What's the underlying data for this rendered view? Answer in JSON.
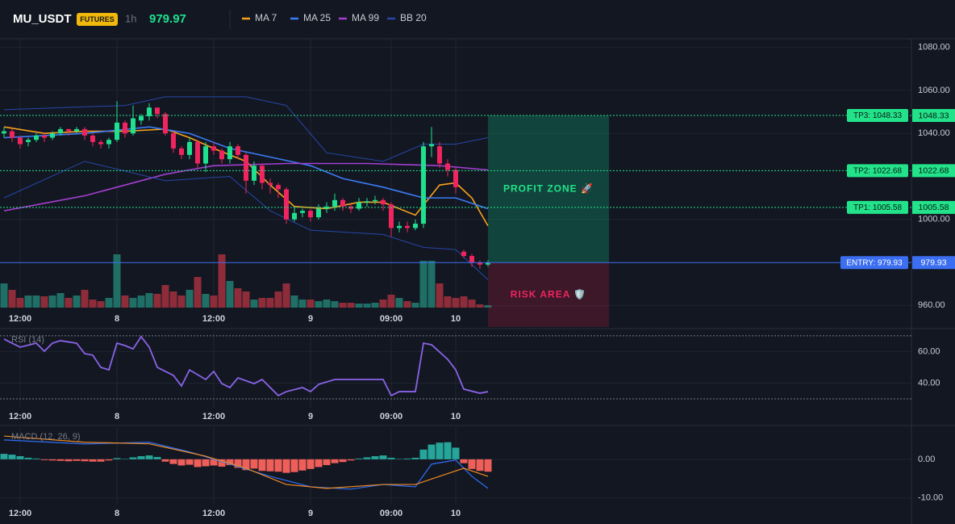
{
  "chart_data": [
    {
      "type": "candlestick",
      "title": "MU_USDT",
      "badge": "FUTURES",
      "interval": "1h",
      "last_price": 979.97,
      "ylim": [
        959,
        1084
      ],
      "yticks": [
        {
          "value": 1080,
          "label": "1080.00"
        },
        {
          "value": 1060,
          "label": "1060.00"
        },
        {
          "value": 1040,
          "label": "1040.00"
        },
        {
          "value": 1000,
          "label": "1000.00"
        },
        {
          "value": 960,
          "label": "960.00"
        }
      ],
      "xticks": [
        {
          "value": 2,
          "label": "12:00"
        },
        {
          "value": 14,
          "label": "8"
        },
        {
          "value": 26,
          "label": "12:00"
        },
        {
          "value": 38,
          "label": "9"
        },
        {
          "value": 48,
          "label": "09:00"
        },
        {
          "value": 56,
          "label": "10"
        }
      ],
      "grid": true,
      "up_color": "#1fe08f",
      "down_color": "#f0245e",
      "open": [
        1040,
        1041,
        1038,
        1036,
        1037,
        1039,
        1038,
        1040,
        1042,
        1041,
        1042,
        1039,
        1036,
        1035,
        1037,
        1045,
        1040,
        1046,
        1048,
        1052,
        1049,
        1040,
        1033,
        1030,
        1036,
        1026,
        1034,
        1032,
        1028,
        1034,
        1030,
        1018,
        1025,
        1017,
        1016,
        1014,
        1000,
        1003,
        1004,
        1001,
        1005,
        1006,
        1009,
        1006,
        1005,
        1008,
        1008.5,
        1009,
        1007,
        996,
        997,
        996,
        998,
        1034,
        1034,
        1026,
        1023,
        985,
        983,
        980,
        979
      ],
      "close": [
        1041,
        1038,
        1035,
        1037,
        1039,
        1038,
        1040,
        1042,
        1041,
        1042,
        1039,
        1036,
        1035,
        1037,
        1045,
        1040,
        1047,
        1048,
        1052,
        1049,
        1040,
        1033,
        1030,
        1036,
        1026,
        1034,
        1032,
        1028,
        1034,
        1030,
        1018,
        1025,
        1017,
        1016,
        1014,
        1000,
        1003,
        1004,
        1001,
        1005,
        1006,
        1009,
        1006,
        1005,
        1008,
        1008.5,
        1009,
        1007,
        996,
        997,
        996,
        998,
        1034,
        1035,
        1026,
        1023,
        1015,
        983,
        980,
        979,
        979.97
      ],
      "high": [
        1043,
        1042,
        1039,
        1038,
        1040,
        1040,
        1041,
        1043,
        1042,
        1043,
        1043,
        1040,
        1037,
        1038,
        1055,
        1046,
        1053,
        1049,
        1054,
        1052,
        1050,
        1041,
        1034,
        1038,
        1037,
        1036,
        1036,
        1033,
        1036,
        1035,
        1031,
        1027,
        1026,
        1019,
        1017,
        1015,
        1006,
        1005,
        1005,
        1007,
        1008,
        1012,
        1010,
        1007,
        1010,
        1010,
        1011,
        1010,
        1008,
        999,
        999,
        1000,
        1036,
        1043,
        1036,
        1028,
        1024,
        986,
        984,
        981,
        981
      ],
      "low": [
        1038,
        1036,
        1033,
        1034,
        1036,
        1036,
        1037,
        1039,
        1039,
        1040,
        1037,
        1034,
        1033,
        1033,
        1036,
        1038,
        1039,
        1044,
        1046,
        1047,
        1039,
        1031,
        1028,
        1028,
        1024,
        1022,
        1030,
        1026,
        1026,
        1028,
        1012,
        1016,
        1014,
        1012,
        1010,
        998,
        999,
        1001,
        999,
        1000,
        1003,
        1004,
        1004,
        1003,
        1004,
        1006,
        1007,
        1004,
        992,
        994,
        994,
        995,
        996,
        1029,
        1024,
        1020,
        1012,
        982,
        978,
        977,
        978
      ],
      "volume": {
        "ylim": [
          0,
          70
        ],
        "up_color": "#1f6f66",
        "down_color": "#8e2c3a",
        "values": [
          30,
          22,
          12,
          15,
          15,
          14,
          15,
          18,
          12,
          15,
          22,
          10,
          8,
          12,
          66,
          15,
          12,
          15,
          18,
          17,
          28,
          20,
          15,
          22,
          38,
          17,
          15,
          66,
          33,
          24,
          20,
          10,
          12,
          12,
          20,
          30,
          15,
          10,
          10,
          8,
          10,
          8,
          6,
          6,
          5,
          5,
          6,
          10,
          16,
          12,
          8,
          6,
          58,
          58,
          30,
          14,
          12,
          14,
          10,
          4,
          3
        ]
      },
      "series": [
        {
          "name": "MA 7",
          "color": "#f7a21b",
          "x": [
            0,
            5,
            10,
            15,
            20,
            23,
            26,
            30,
            33,
            36,
            40,
            44,
            47,
            51,
            54,
            56,
            58,
            60
          ],
          "values": [
            1043,
            1040,
            1041,
            1041,
            1042,
            1038,
            1033,
            1027,
            1016,
            1006,
            1005,
            1008,
            1008,
            1002,
            1016,
            1017,
            1010,
            997
          ]
        },
        {
          "name": "MA 25",
          "color": "#3b7cf6",
          "x": [
            0,
            10,
            18,
            23,
            28,
            33,
            38,
            42,
            47,
            52,
            56,
            60
          ],
          "values": [
            1038,
            1040,
            1043,
            1040,
            1033,
            1029,
            1025,
            1019,
            1015,
            1010,
            1010,
            1005
          ]
        },
        {
          "name": "MA 99",
          "color": "#a23fd0",
          "x": [
            0,
            10,
            20,
            26,
            35,
            45,
            54,
            60
          ],
          "values": [
            1004,
            1011,
            1021,
            1025,
            1026,
            1026,
            1025,
            1023
          ]
        },
        {
          "name": "BB 20",
          "color": "#2747a8",
          "x": [
            0,
            15,
            20,
            30,
            35,
            40,
            47,
            52,
            56,
            60
          ],
          "values": [
            1051,
            1053,
            1057,
            1057,
            1053,
            1031,
            1027,
            1035,
            1035,
            1038
          ],
          "lower_x": [
            0,
            10,
            20,
            28,
            33,
            38,
            47,
            52,
            56,
            60
          ],
          "lower": [
            1010,
            1027,
            1018,
            1020,
            1004,
            995,
            993,
            987,
            986,
            972
          ]
        }
      ],
      "levels": [
        {
          "label": "TP3: 1048.33",
          "value": 1048.33,
          "color": "#22e38a"
        },
        {
          "label": "TP2: 1022.68",
          "value": 1022.68,
          "color": "#22e38a"
        },
        {
          "label": "TP1: 1005.58",
          "value": 1005.58,
          "color": "#22e38a"
        },
        {
          "label": "ENTRY: 979.93",
          "value": 979.93,
          "color": "#3b6ef0"
        }
      ],
      "profit_zone": {
        "label": "PROFIT ZONE 🚀"
      },
      "risk_area": {
        "label": "RISK AREA 🛡️",
        "low": 950
      }
    },
    {
      "type": "line",
      "title": "RSI (14)",
      "ylim": [
        24.4,
        73
      ],
      "yticks": [
        {
          "value": 60,
          "label": "60.00"
        },
        {
          "value": 40,
          "label": "40.00"
        }
      ],
      "bands": [
        70,
        30
      ],
      "xticks": [
        {
          "value": 2,
          "label": "12:00"
        },
        {
          "value": 14,
          "label": "8"
        },
        {
          "value": 26,
          "label": "12:00"
        },
        {
          "value": 38,
          "label": "9"
        },
        {
          "value": 48,
          "label": "09:00"
        },
        {
          "value": 56,
          "label": "10"
        }
      ],
      "grid": true,
      "series": [
        {
          "color": "#8a63e6",
          "x": [
            0,
            1,
            2,
            4,
            5,
            6,
            7,
            9,
            10,
            11,
            12,
            13,
            14,
            15,
            16,
            17,
            18,
            19,
            21,
            22,
            23,
            25,
            26,
            27,
            28,
            29,
            31,
            32,
            34,
            35,
            37,
            38,
            39,
            41,
            42,
            45,
            47,
            48,
            49,
            51,
            52,
            53,
            55,
            56,
            57,
            59,
            60
          ],
          "values": [
            67.9,
            65.3,
            62.8,
            65.3,
            60.2,
            65.3,
            66.9,
            65.3,
            58.7,
            57.7,
            50.0,
            48.4,
            65.3,
            63.8,
            61.7,
            69.4,
            62.8,
            50.0,
            44.9,
            38.2,
            48.4,
            42.3,
            47.4,
            39.7,
            37.2,
            43.3,
            39.7,
            42.3,
            32.1,
            34.6,
            37.2,
            34.6,
            39.2,
            42.3,
            42.3,
            42.3,
            42.3,
            32.1,
            34.6,
            34.6,
            65.3,
            64.3,
            55.1,
            48.4,
            36.2,
            33.6,
            34.6
          ]
        }
      ]
    },
    {
      "type": "macd",
      "title": "MACD (12, 26, 9)",
      "ylim": [
        -11.7,
        8.1
      ],
      "yticks": [
        {
          "value": 0,
          "label": "0.00"
        },
        {
          "value": -10,
          "label": "-10.00"
        }
      ],
      "xticks": [
        {
          "value": 2,
          "label": "12:00"
        },
        {
          "value": 14,
          "label": "8"
        },
        {
          "value": 26,
          "label": "12:00"
        },
        {
          "value": 38,
          "label": "9"
        },
        {
          "value": 48,
          "label": "09:00"
        },
        {
          "value": 56,
          "label": "10"
        }
      ],
      "grid": true,
      "up_color": "#26a69a",
      "down_color": "#ef5f5a",
      "histogram": [
        1.4,
        1.2,
        0.8,
        0.4,
        0.2,
        -0.2,
        -0.3,
        -0.4,
        -0.5,
        -0.4,
        -0.5,
        -0.6,
        -0.6,
        -0.3,
        0.3,
        0.1,
        0.5,
        0.8,
        1.0,
        0.6,
        -0.6,
        -1.2,
        -1.6,
        -1.4,
        -2.0,
        -1.8,
        -1.6,
        -1.9,
        -1.5,
        -2.2,
        -2.8,
        -2.4,
        -3.0,
        -3.1,
        -3.2,
        -3.5,
        -3.3,
        -2.9,
        -2.5,
        -2.0,
        -1.5,
        -1.0,
        -0.7,
        -0.3,
        0.2,
        0.5,
        0.8,
        1.0,
        0.4,
        0.1,
        0.2,
        0.4,
        2.5,
        3.8,
        4.3,
        4.4,
        3.0,
        -1.0,
        -2.5,
        -3.0,
        -3.2
      ],
      "series": [
        {
          "color": "#2f6ff2",
          "x": [
            0,
            10,
            18,
            23,
            28,
            33,
            38,
            43,
            47,
            51,
            53,
            56,
            58,
            60
          ],
          "values": [
            5.0,
            3.96,
            4.4,
            1.9,
            -1.25,
            -4.4,
            -7.1,
            -7.7,
            -6.5,
            -7.1,
            -1.25,
            -0.2,
            -4.4,
            -7.5
          ]
        },
        {
          "color": "#f08a24",
          "x": [
            0,
            10,
            18,
            25,
            30,
            35,
            40,
            47,
            51,
            54,
            57,
            60
          ],
          "values": [
            6.0,
            4.4,
            4.0,
            0.8,
            -2.3,
            -6.5,
            -7.5,
            -6.5,
            -6.5,
            -4.4,
            -2.3,
            -4.4
          ]
        }
      ]
    }
  ]
}
